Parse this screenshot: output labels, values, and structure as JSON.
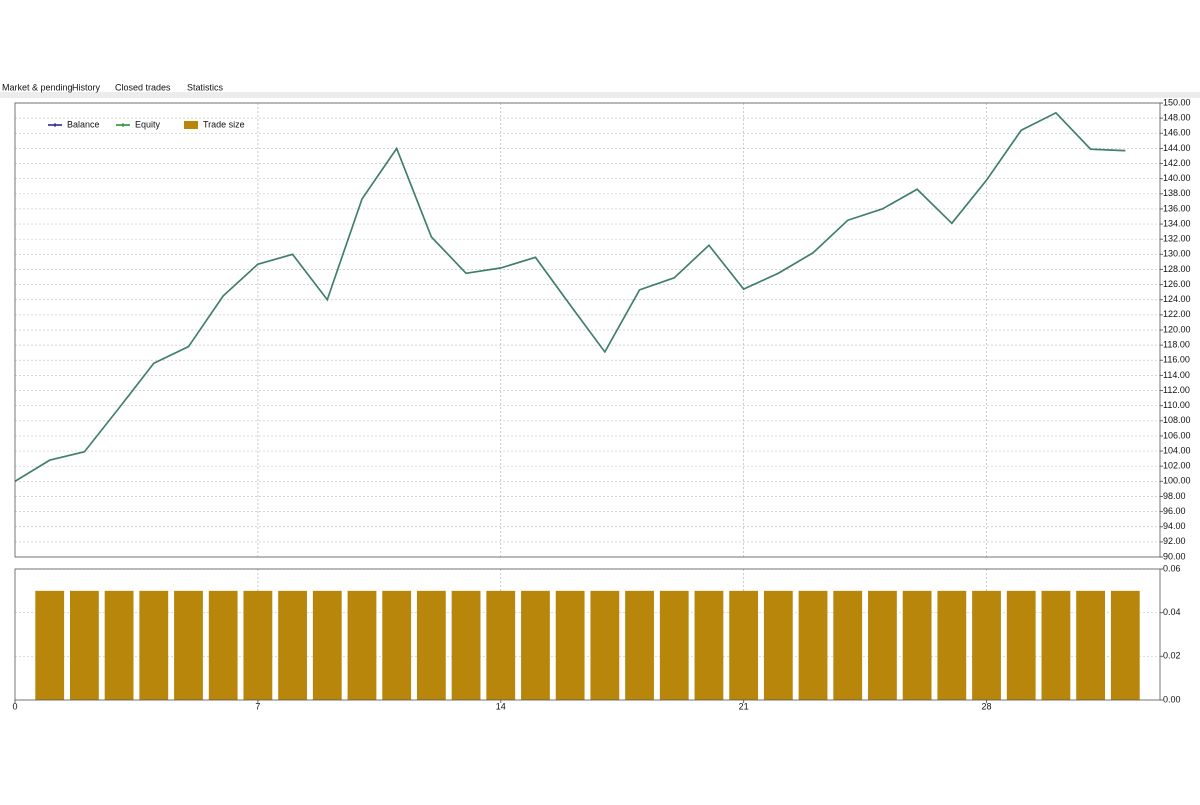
{
  "tabs": [
    "Market & pending",
    "History",
    "Closed trades",
    "Statistics"
  ],
  "chart_data": [
    {
      "type": "line",
      "x": [
        0,
        1,
        2,
        3,
        4,
        5,
        6,
        7,
        8,
        9,
        10,
        11,
        12,
        13,
        14,
        15,
        16,
        17,
        18,
        19,
        20,
        21,
        22,
        23,
        24,
        25,
        26,
        27,
        28,
        29,
        30,
        31,
        32
      ],
      "series": [
        {
          "name": "Balance",
          "color": "#1a1a8c",
          "values": [
            100.0,
            102.8,
            103.9,
            109.7,
            115.6,
            117.8,
            124.5,
            128.7,
            130.0,
            124.0,
            137.3,
            144.0,
            132.3,
            127.5,
            128.2,
            129.6,
            123.3,
            117.1,
            125.3,
            126.9,
            131.2,
            125.4,
            127.5,
            130.2,
            134.5,
            136.0,
            138.6,
            134.1,
            139.8,
            146.4,
            148.7,
            143.9,
            143.7
          ]
        },
        {
          "name": "Equity",
          "color": "#1a8a2a",
          "values": [
            100.0,
            102.8,
            103.9,
            109.7,
            115.6,
            117.8,
            124.5,
            128.7,
            130.0,
            124.0,
            137.3,
            144.0,
            132.3,
            127.5,
            128.2,
            129.6,
            123.3,
            117.1,
            125.3,
            126.9,
            131.2,
            125.4,
            127.5,
            130.2,
            134.5,
            136.0,
            138.6,
            134.1,
            139.8,
            146.4,
            148.7,
            143.9,
            143.7
          ]
        }
      ],
      "xlim": [
        0,
        33
      ],
      "xticks": [
        0,
        7,
        14,
        21,
        28
      ],
      "ylim": [
        90,
        150
      ],
      "yticks": [
        {
          "value": 90,
          "label": "90.00"
        },
        {
          "value": 92,
          "label": "92.00"
        },
        {
          "value": 94,
          "label": "94.00"
        },
        {
          "value": 96,
          "label": "96.00"
        },
        {
          "value": 98,
          "label": "98.00"
        },
        {
          "value": 100,
          "label": "100.00"
        },
        {
          "value": 102,
          "label": "102.00"
        },
        {
          "value": 104,
          "label": "104.00"
        },
        {
          "value": 106,
          "label": "106.00"
        },
        {
          "value": 108,
          "label": "108.00"
        },
        {
          "value": 110,
          "label": "110.00"
        },
        {
          "value": 112,
          "label": "112.00"
        },
        {
          "value": 114,
          "label": "114.00"
        },
        {
          "value": 116,
          "label": "116.00"
        },
        {
          "value": 118,
          "label": "118.00"
        },
        {
          "value": 120,
          "label": "120.00"
        },
        {
          "value": 122,
          "label": "122.00"
        },
        {
          "value": 124,
          "label": "124.00"
        },
        {
          "value": 126,
          "label": "126.00"
        },
        {
          "value": 128,
          "label": "128.00"
        },
        {
          "value": 130,
          "label": "130.00"
        },
        {
          "value": 132,
          "label": "132.00"
        },
        {
          "value": 134,
          "label": "134.00"
        },
        {
          "value": 136,
          "label": "136.00"
        },
        {
          "value": 138,
          "label": "138.00"
        },
        {
          "value": 140,
          "label": "140.00"
        },
        {
          "value": 142,
          "label": "142.00"
        },
        {
          "value": 144,
          "label": "144.00"
        },
        {
          "value": 146,
          "label": "146.00"
        },
        {
          "value": 148,
          "label": "148.00"
        },
        {
          "value": 150,
          "label": "150.00"
        }
      ],
      "grid": true
    },
    {
      "type": "bar",
      "x": [
        1,
        2,
        3,
        4,
        5,
        6,
        7,
        8,
        9,
        10,
        11,
        12,
        13,
        14,
        15,
        16,
        17,
        18,
        19,
        20,
        21,
        22,
        23,
        24,
        25,
        26,
        27,
        28,
        29,
        30,
        31,
        32
      ],
      "series": [
        {
          "name": "Trade size",
          "color": "#b8860b",
          "values": [
            0.05,
            0.05,
            0.05,
            0.05,
            0.05,
            0.05,
            0.05,
            0.05,
            0.05,
            0.05,
            0.05,
            0.05,
            0.05,
            0.05,
            0.05,
            0.05,
            0.05,
            0.05,
            0.05,
            0.05,
            0.05,
            0.05,
            0.05,
            0.05,
            0.05,
            0.05,
            0.05,
            0.05,
            0.05,
            0.05,
            0.05,
            0.05
          ]
        }
      ],
      "xlim": [
        0,
        33
      ],
      "xticks": [
        0,
        7,
        14,
        21,
        28
      ],
      "ylim": [
        0,
        0.06
      ],
      "yticks": [
        {
          "value": 0,
          "label": "0.00"
        },
        {
          "value": 0.02,
          "label": "0.02"
        },
        {
          "value": 0.04,
          "label": "0.04"
        },
        {
          "value": 0.06,
          "label": "0.06"
        }
      ],
      "grid": true
    }
  ]
}
